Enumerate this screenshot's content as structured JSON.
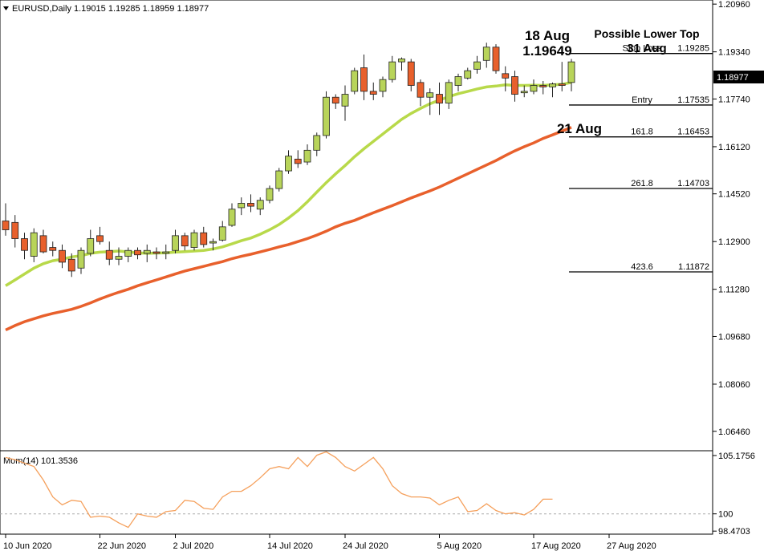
{
  "chart_data": [
    {
      "type": "candlestick",
      "title": "EURUSD,Daily  1.19015 1.19285 1.18959 1.18977",
      "symbol": "EURUSD",
      "timeframe": "Daily",
      "ohlc_header": [
        "1.19015",
        "1.19285",
        "1.18959",
        "1.18977"
      ],
      "current_price_label": "1.18977",
      "colors": {
        "bull": "#b8d45a",
        "bear": "#e8602c",
        "ma_fast": "#b8d94a",
        "ma_slow": "#e8602c",
        "momentum": "#f5a05c",
        "grid_ref": "#aaaaaa"
      },
      "ylim": [
        1.058,
        1.211
      ],
      "y_ticks": [
        "1.20960",
        "1.19340",
        "1.17740",
        "1.16120",
        "1.14520",
        "1.12900",
        "1.11280",
        "1.09680",
        "1.08060",
        "1.06460"
      ],
      "x_tick_labels": [
        "10 Jun 2020",
        "22 Jun 2020",
        "2 Jul 2020",
        "14 Jul 2020",
        "24 Jul 2020",
        "5 Aug 2020",
        "17 Aug 2020",
        "27 Aug 2020"
      ],
      "x_tick_index": [
        0,
        10,
        18,
        28,
        36,
        46,
        56,
        64
      ],
      "candles": [
        {
          "o": 1.136,
          "h": 1.142,
          "l": 1.131,
          "c": 1.133
        },
        {
          "o": 1.1355,
          "h": 1.138,
          "l": 1.127,
          "c": 1.13
        },
        {
          "o": 1.13,
          "h": 1.132,
          "l": 1.123,
          "c": 1.126
        },
        {
          "o": 1.124,
          "h": 1.1335,
          "l": 1.122,
          "c": 1.132
        },
        {
          "o": 1.131,
          "h": 1.133,
          "l": 1.125,
          "c": 1.1255
        },
        {
          "o": 1.127,
          "h": 1.129,
          "l": 1.124,
          "c": 1.126
        },
        {
          "o": 1.126,
          "h": 1.128,
          "l": 1.12,
          "c": 1.122
        },
        {
          "o": 1.123,
          "h": 1.125,
          "l": 1.117,
          "c": 1.119
        },
        {
          "o": 1.12,
          "h": 1.127,
          "l": 1.118,
          "c": 1.126
        },
        {
          "o": 1.125,
          "h": 1.133,
          "l": 1.124,
          "c": 1.13
        },
        {
          "o": 1.131,
          "h": 1.134,
          "l": 1.128,
          "c": 1.129
        },
        {
          "o": 1.126,
          "h": 1.129,
          "l": 1.121,
          "c": 1.123
        },
        {
          "o": 1.123,
          "h": 1.127,
          "l": 1.121,
          "c": 1.124
        },
        {
          "o": 1.124,
          "h": 1.127,
          "l": 1.122,
          "c": 1.126
        },
        {
          "o": 1.126,
          "h": 1.127,
          "l": 1.123,
          "c": 1.1245
        },
        {
          "o": 1.125,
          "h": 1.128,
          "l": 1.122,
          "c": 1.126
        },
        {
          "o": 1.1255,
          "h": 1.127,
          "l": 1.123,
          "c": 1.125
        },
        {
          "o": 1.125,
          "h": 1.128,
          "l": 1.123,
          "c": 1.1255
        },
        {
          "o": 1.126,
          "h": 1.133,
          "l": 1.125,
          "c": 1.131
        },
        {
          "o": 1.131,
          "h": 1.132,
          "l": 1.126,
          "c": 1.1275
        },
        {
          "o": 1.127,
          "h": 1.133,
          "l": 1.126,
          "c": 1.132
        },
        {
          "o": 1.132,
          "h": 1.134,
          "l": 1.127,
          "c": 1.128
        },
        {
          "o": 1.1285,
          "h": 1.13,
          "l": 1.126,
          "c": 1.129
        },
        {
          "o": 1.1295,
          "h": 1.136,
          "l": 1.129,
          "c": 1.134
        },
        {
          "o": 1.1345,
          "h": 1.142,
          "l": 1.134,
          "c": 1.14
        },
        {
          "o": 1.1405,
          "h": 1.144,
          "l": 1.138,
          "c": 1.142
        },
        {
          "o": 1.142,
          "h": 1.145,
          "l": 1.139,
          "c": 1.141
        },
        {
          "o": 1.14,
          "h": 1.144,
          "l": 1.138,
          "c": 1.143
        },
        {
          "o": 1.143,
          "h": 1.148,
          "l": 1.142,
          "c": 1.147
        },
        {
          "o": 1.147,
          "h": 1.154,
          "l": 1.146,
          "c": 1.153
        },
        {
          "o": 1.153,
          "h": 1.16,
          "l": 1.152,
          "c": 1.158
        },
        {
          "o": 1.157,
          "h": 1.16,
          "l": 1.154,
          "c": 1.1555
        },
        {
          "o": 1.156,
          "h": 1.162,
          "l": 1.155,
          "c": 1.16
        },
        {
          "o": 1.16,
          "h": 1.166,
          "l": 1.158,
          "c": 1.165
        },
        {
          "o": 1.165,
          "h": 1.18,
          "l": 1.164,
          "c": 1.178
        },
        {
          "o": 1.178,
          "h": 1.179,
          "l": 1.174,
          "c": 1.176
        },
        {
          "o": 1.175,
          "h": 1.182,
          "l": 1.17,
          "c": 1.179
        },
        {
          "o": 1.18,
          "h": 1.188,
          "l": 1.179,
          "c": 1.187
        },
        {
          "o": 1.188,
          "h": 1.1925,
          "l": 1.177,
          "c": 1.18
        },
        {
          "o": 1.18,
          "h": 1.183,
          "l": 1.177,
          "c": 1.179
        },
        {
          "o": 1.18,
          "h": 1.185,
          "l": 1.178,
          "c": 1.184
        },
        {
          "o": 1.184,
          "h": 1.192,
          "l": 1.183,
          "c": 1.19
        },
        {
          "o": 1.19,
          "h": 1.1915,
          "l": 1.187,
          "c": 1.191
        },
        {
          "o": 1.19,
          "h": 1.191,
          "l": 1.18,
          "c": 1.182
        },
        {
          "o": 1.183,
          "h": 1.184,
          "l": 1.175,
          "c": 1.178
        },
        {
          "o": 1.178,
          "h": 1.181,
          "l": 1.172,
          "c": 1.1795
        },
        {
          "o": 1.179,
          "h": 1.183,
          "l": 1.172,
          "c": 1.176
        },
        {
          "o": 1.176,
          "h": 1.184,
          "l": 1.174,
          "c": 1.183
        },
        {
          "o": 1.182,
          "h": 1.186,
          "l": 1.18,
          "c": 1.185
        },
        {
          "o": 1.1845,
          "h": 1.188,
          "l": 1.184,
          "c": 1.187
        },
        {
          "o": 1.1875,
          "h": 1.192,
          "l": 1.186,
          "c": 1.19
        },
        {
          "o": 1.1905,
          "h": 1.1965,
          "l": 1.188,
          "c": 1.195
        },
        {
          "o": 1.195,
          "h": 1.196,
          "l": 1.186,
          "c": 1.187
        },
        {
          "o": 1.186,
          "h": 1.1885,
          "l": 1.18,
          "c": 1.1845
        },
        {
          "o": 1.185,
          "h": 1.187,
          "l": 1.1765,
          "c": 1.179
        },
        {
          "o": 1.1795,
          "h": 1.182,
          "l": 1.178,
          "c": 1.18
        },
        {
          "o": 1.18,
          "h": 1.184,
          "l": 1.179,
          "c": 1.182
        },
        {
          "o": 1.182,
          "h": 1.1835,
          "l": 1.179,
          "c": 1.1815
        },
        {
          "o": 1.1815,
          "h": 1.183,
          "l": 1.178,
          "c": 1.1825
        },
        {
          "o": 1.1825,
          "h": 1.19,
          "l": 1.18,
          "c": 1.182
        },
        {
          "o": 1.183,
          "h": 1.191,
          "l": 1.18,
          "c": 1.19
        }
      ],
      "ma_fast_series": [
        1.114,
        1.116,
        1.118,
        1.12,
        1.1215,
        1.1225,
        1.123,
        1.1238,
        1.1242,
        1.125,
        1.1254,
        1.1256,
        1.1258,
        1.1255,
        1.1252,
        1.125,
        1.1251,
        1.1252,
        1.1254,
        1.1256,
        1.1258,
        1.126,
        1.1265,
        1.1272,
        1.1282,
        1.1293,
        1.1302,
        1.1315,
        1.133,
        1.1348,
        1.137,
        1.1395,
        1.1425,
        1.1458,
        1.149,
        1.152,
        1.1548,
        1.1578,
        1.1605,
        1.163,
        1.1655,
        1.168,
        1.1705,
        1.1725,
        1.1742,
        1.1758,
        1.177,
        1.1782,
        1.1792,
        1.18,
        1.1808,
        1.1815,
        1.1818,
        1.1822,
        1.182,
        1.182,
        1.1821,
        1.182,
        1.1822,
        1.1824,
        1.183
      ],
      "ma_slow_series": [
        1.099,
        1.1005,
        1.1018,
        1.1028,
        1.1038,
        1.1046,
        1.1053,
        1.106,
        1.107,
        1.1082,
        1.1095,
        1.1107,
        1.1118,
        1.1128,
        1.114,
        1.115,
        1.116,
        1.117,
        1.118,
        1.119,
        1.1198,
        1.1206,
        1.1214,
        1.1222,
        1.1232,
        1.124,
        1.1247,
        1.1255,
        1.1263,
        1.1272,
        1.128,
        1.129,
        1.13,
        1.1312,
        1.1325,
        1.134,
        1.1352,
        1.1362,
        1.1375,
        1.1388,
        1.14,
        1.1412,
        1.1425,
        1.1438,
        1.145,
        1.1462,
        1.1475,
        1.149,
        1.1505,
        1.152,
        1.1535,
        1.155,
        1.1565,
        1.1582,
        1.1598,
        1.1612,
        1.1625,
        1.164,
        1.1652,
        1.1665,
        1.1678
      ],
      "levels": [
        {
          "label": "Stop Loss",
          "value_text": "1.19285",
          "value": 1.19285
        },
        {
          "label": "Entry",
          "value_text": "1.17535",
          "value": 1.17535
        },
        {
          "label": "161.8",
          "value_text": "1.16453",
          "value": 1.16453
        },
        {
          "label": "261.8",
          "value_text": "1.14703",
          "value": 1.14703
        },
        {
          "label": "423.6",
          "value_text": "1.11872",
          "value": 1.11872
        }
      ],
      "annotations": [
        {
          "line1": "18 Aug",
          "line2": "1.19649"
        },
        {
          "line1": "Possible Lower Top",
          "line2": "31 Aug"
        },
        {
          "line1": "21 Aug",
          "line2": ""
        }
      ]
    },
    {
      "type": "line",
      "title": "Mom(14) 101.3536",
      "indicator": "Mom(14)",
      "indicator_value": "101.3536",
      "ylim": [
        98.2,
        105.6
      ],
      "y_ticks": [
        "105.1756",
        "100",
        "98.4703"
      ],
      "reference_level": 100,
      "values": [
        105.0,
        104.8,
        104.5,
        104.2,
        103.0,
        101.5,
        100.8,
        101.2,
        101.1,
        99.7,
        99.8,
        99.7,
        99.2,
        98.8,
        100.0,
        99.8,
        99.7,
        100.2,
        100.3,
        101.2,
        101.1,
        100.5,
        100.4,
        101.5,
        102.0,
        102.0,
        102.5,
        103.2,
        104.0,
        104.2,
        104.0,
        105.0,
        104.2,
        105.2,
        105.5,
        105.0,
        104.2,
        103.8,
        104.4,
        105.0,
        104.0,
        102.5,
        101.8,
        101.5,
        101.5,
        101.4,
        100.8,
        101.2,
        101.5,
        100.2,
        100.3,
        100.9,
        100.3,
        100.0,
        100.1,
        99.9,
        100.4,
        101.3,
        101.3
      ]
    }
  ]
}
